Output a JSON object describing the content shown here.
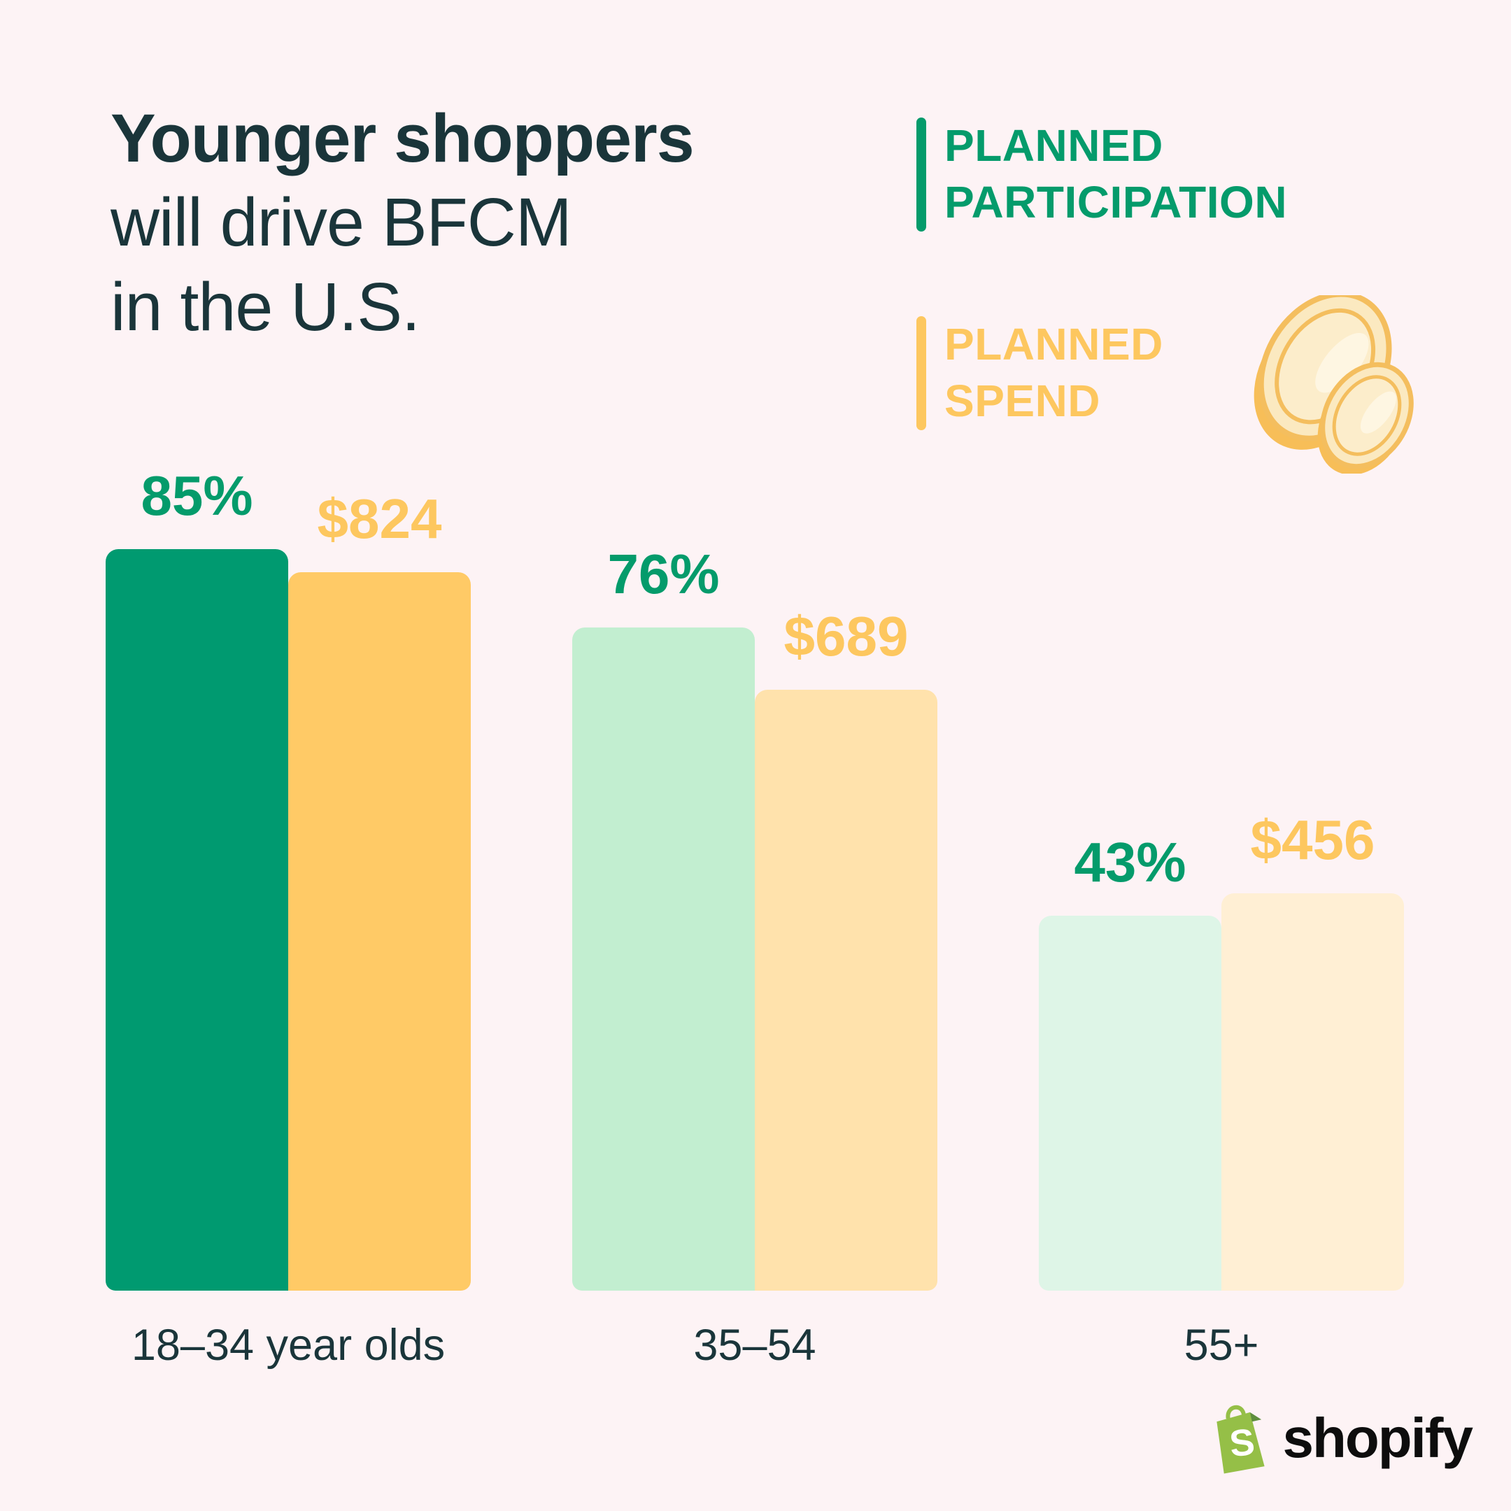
{
  "page": {
    "background": "#FDF3F5"
  },
  "title": {
    "lines": [
      "Younger shoppers",
      "will drive BFCM",
      "in the U.S."
    ],
    "color": "#1A353A"
  },
  "legend": {
    "items": [
      {
        "id": "planned-participation",
        "lines": [
          "PLANNED",
          "PARTICIPATION"
        ],
        "color": "#049B6B"
      },
      {
        "id": "planned-spend",
        "lines": [
          "PLANNED",
          "SPEND"
        ],
        "color": "#FDC75F"
      }
    ]
  },
  "chart_data": {
    "type": "bar",
    "title": "Younger shoppers will drive BFCM in the U.S.",
    "categories": [
      "18–34 year olds",
      "35–54",
      "55+"
    ],
    "category_label_color": "#1A353A",
    "grid": false,
    "legend_position": "top-right",
    "series": [
      {
        "name": "PLANNED PARTICIPATION",
        "unit": "percent",
        "values": [
          85,
          76,
          43
        ],
        "value_labels": [
          "85%",
          "76%",
          "43%"
        ],
        "bar_colors": [
          "#009A70",
          "#C2EED0",
          "#DEF5E7"
        ],
        "label_color": "#049B6B",
        "axis_max": 85
      },
      {
        "name": "PLANNED SPEND",
        "unit": "usd",
        "values": [
          824,
          689,
          456
        ],
        "value_labels": [
          "$824",
          "$689",
          "$456"
        ],
        "bar_colors": [
          "#FFCA66",
          "#FFE2AC",
          "#FFEFD4"
        ],
        "label_color": "#FDC75F",
        "axis_max": 824
      }
    ]
  },
  "footer": {
    "brand_text": "shopify",
    "bag_color": "#95BF47",
    "bag_shade_color": "#5E8E3E"
  }
}
